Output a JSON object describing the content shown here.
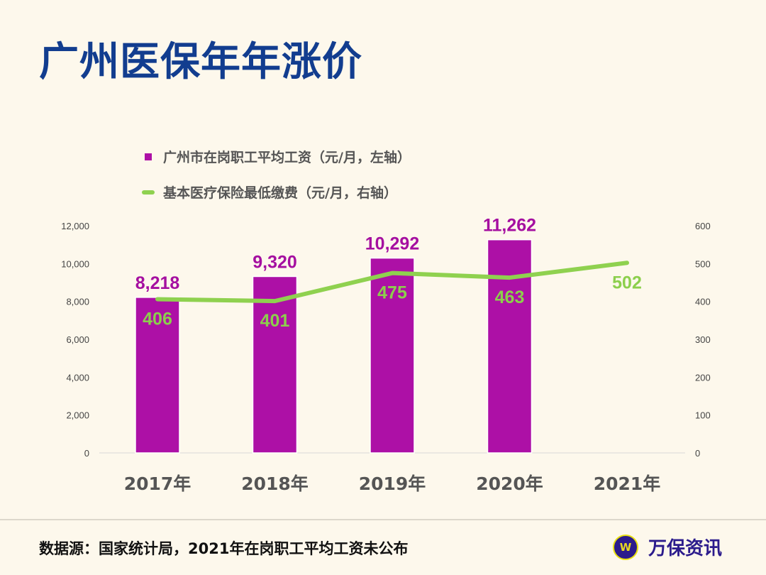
{
  "title": "广州医保年年涨价",
  "chart_data": {
    "type": "bar+line",
    "categories": [
      "2017年",
      "2018年",
      "2019年",
      "2020年",
      "2021年"
    ],
    "series": [
      {
        "name": "广州市在岗职工平均工资（元/月，左轴）",
        "type": "bar",
        "axis": "left",
        "values": [
          8218,
          9320,
          10292,
          11262,
          null
        ],
        "labels": [
          "8,218",
          "9,320",
          "10,292",
          "11,262",
          ""
        ],
        "color": "#ad10a6"
      },
      {
        "name": "基本医疗保险最低缴费（元/月，右轴）",
        "type": "line",
        "axis": "right",
        "values": [
          406,
          401,
          475,
          463,
          502
        ],
        "labels": [
          "406",
          "401",
          "475",
          "463",
          "502"
        ],
        "color": "#8fd14f"
      }
    ],
    "left_axis": {
      "range": [
        0,
        12000
      ],
      "ticks": [
        "0",
        "2,000",
        "4,000",
        "6,000",
        "8,000",
        "10,000",
        "12,000"
      ]
    },
    "right_axis": {
      "range": [
        0,
        600
      ],
      "ticks": [
        "0",
        "100",
        "200",
        "300",
        "400",
        "500",
        "600"
      ]
    },
    "legend_placement": "top-left",
    "grid": false
  },
  "footer": {
    "source": "数据源：国家统计局，2021年在岗职工平均工资未公布",
    "brand": "万保资讯",
    "brand_logo_letter": "W"
  }
}
